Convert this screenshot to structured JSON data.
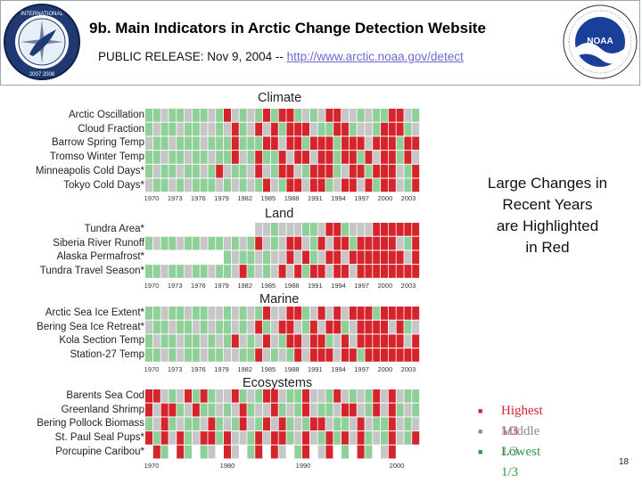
{
  "header": {
    "title": "9b. Main Indicators in Arctic Change Detection Website",
    "release_prefix": "PUBLIC RELEASE:  Nov 9, 2004 -- ",
    "release_link": "http://www.arctic.noaa.gov/detect"
  },
  "logos": {
    "left_seal_text": "INTERNATIONAL POLAR YEAR 2007 2008",
    "noaa_text": "NOAA",
    "noaa_ring_text": "NATIONAL OCEANIC AND ATMOSPHERIC ADMINISTRATION U.S. DEPARTMENT OF COMMERCE"
  },
  "colors": {
    "high": "#d6242c",
    "middle": "#c6c6c6",
    "low": "#8fcf98",
    "blank": "#ffffff"
  },
  "sections": [
    {
      "title": "Climate",
      "rows": [
        {
          "label": "Arctic Oscillation",
          "cells": "LLMLLMLLMLHMLMLHLHHLMLMHHMMLMLLHHML"
        },
        {
          "label": "Cloud Fraction",
          "cells": "LMLLMLLMMLMHLMHMHLHHHMLLHHLMMLHHHLM"
        },
        {
          "label": "Barrow Spring Temp",
          "cells": "MLLMLLLMLLLHLLLHHMHHLHHHLHHHMHHHLHH"
        },
        {
          "label": "Tromso Winter Temp",
          "cells": "LLMLLMLLMLLHMLHLLHMHHMHHLHHLHMHHLHM"
        },
        {
          "label": "Minneapolis Cold Days*",
          "cells": "LMLLMLLMLHMLLMHMLHHMLHHHLMHHLHHHMLH"
        },
        {
          "label": "Tokyo Cold Days*",
          "cells": "MLLMLMLLLMLMLMLHMLHHMHHLMHHMHLHHMLH"
        }
      ],
      "axis_labels": [
        "1970",
        "1973",
        "1976",
        "1979",
        "1982",
        "1985",
        "1988",
        "1991",
        "1994",
        "1997",
        "2000",
        "2003"
      ]
    },
    {
      "title": "Land",
      "rows": [
        {
          "label": "Tundra Area*",
          "cells": "______________MMLMMMLLMHHLMMMHHHHHH"
        },
        {
          "label": "Siberia River Runoff",
          "cells": "LMLLMLLMLLMLMLHMLMHHMLHMHHLHHHHHMLH"
        },
        {
          "label": "Alaska Permafrost*",
          "cells": "__________LMLLMLMMHMHLMHHMHHHHHHHMH"
        },
        {
          "label": "Tundra Travel Season*",
          "cells": "LLMLLMLLMLLMHLMLMHMHLHHMHHMHHHHHHHH"
        }
      ],
      "axis_labels": [
        "1970",
        "1973",
        "1976",
        "1979",
        "1982",
        "1985",
        "1988",
        "1991",
        "1994",
        "1997",
        "2000",
        "2003"
      ]
    },
    {
      "title": "Marine",
      "rows": [
        {
          "label": "Arctic Sea Ice Extent*",
          "cells": "LLMLLMLLMMLMLMLHMMHHLMHMHMHHHLHHHHH"
        },
        {
          "label": "Bering Sea Ice Retreat*",
          "cells": "MLLMLLMLMLLMLMHLMHHMLHMHHLMHHHHMHLM"
        },
        {
          "label": "Kola Section Temp",
          "cells": "LMLLMLLMLMLHMLMHMLHHMHHLMHMHHHHHHMH"
        },
        {
          "label": "Station-27 Temp",
          "cells": "LLMLMLLMLLMMLLHMLMLHMHHHMHHLHHHHHHH"
        }
      ],
      "axis_labels": [
        "1970",
        "1973",
        "1976",
        "1979",
        "1982",
        "1985",
        "1988",
        "1991",
        "1994",
        "1997",
        "2000",
        "2003"
      ]
    },
    {
      "title": "Ecosystems",
      "rows": [
        {
          "label": "Barents Sea Cod",
          "cells": "HHMLMHLHLMMHLMLHHMLLHMMLHMLMLHMHMLL"
        },
        {
          "label": "Greenland Shrimp",
          "cells": "HMHHLMHLLMLMHLMMHLMLHMLLMHHMLHMHLML"
        },
        {
          "label": "Bering Pollock Biomass",
          "cells": "LMHLMLLMHLMLHMLHMHLMLHHMLLMHMLLHMLM"
        },
        {
          "label": "St. Paul Seal Pups*",
          "cells": "HLHMHLMHHLHMMLHMHHLMHMLHLHMHLMLHMLH"
        },
        {
          "label": "Porcupine Caribou*",
          "cells": "_HL_HL_LM_HM_LH_HM_LH_MH_L_HL_MH___"
        }
      ],
      "axis_labels": [
        "1970",
        "1980",
        "1990",
        "2000"
      ]
    }
  ],
  "callout": {
    "line1": "Large Changes in",
    "line2": "Recent Years",
    "line3": "are Highlighted",
    "line4": "in Red"
  },
  "legend": [
    {
      "label": "Highest 1/3",
      "color": "#d6242c"
    },
    {
      "label": "Middle 1/3",
      "color": "#8c8c8c"
    },
    {
      "label": "Lowest 1/3",
      "color": "#2e9a3e"
    }
  ],
  "page_number": "18"
}
